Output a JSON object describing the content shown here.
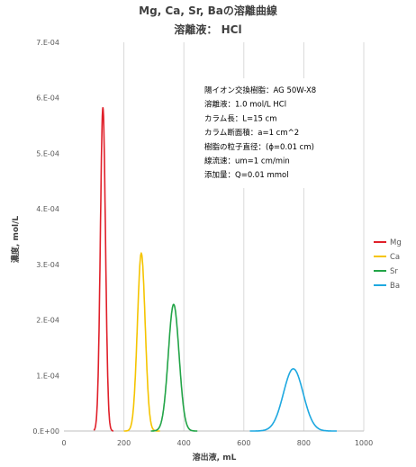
{
  "chart_data": {
    "type": "line",
    "title": "Mg, Ca, Sr, Baの溶離曲線",
    "subtitle": "溶離液： HCl",
    "xlabel": "溶出液, mL",
    "ylabel": "濃度, mol/L",
    "xlim": [
      0,
      1000
    ],
    "ylim": [
      0,
      0.0007
    ],
    "x_ticks": [
      "0",
      "200",
      "400",
      "600",
      "800",
      "1000"
    ],
    "y_ticks": [
      "0.E+00",
      "1.E-04",
      "2.E-04",
      "3.E-04",
      "4.E-04",
      "5.E-04",
      "6.E-04",
      "7.E-04"
    ],
    "grid": "vertical",
    "legend_position": "right",
    "series": [
      {
        "name": "Mg",
        "color": "#e0202a",
        "peak_x": 130,
        "peak_y": 0.000583,
        "sigma": 8.5,
        "range": [
          100,
          165
        ]
      },
      {
        "name": "Ca",
        "color": "#f5c400",
        "peak_x": 258,
        "peak_y": 0.00032,
        "sigma": 13,
        "range": [
          200,
          320
        ]
      },
      {
        "name": "Sr",
        "color": "#22a447",
        "peak_x": 366,
        "peak_y": 0.000228,
        "sigma": 18,
        "range": [
          290,
          445
        ]
      },
      {
        "name": "Ba",
        "color": "#1ea8e0",
        "peak_x": 765,
        "peak_y": 0.000112,
        "sigma": 33,
        "range": [
          620,
          910
        ]
      }
    ],
    "annotation": [
      "陽イオン交換樹脂：AG 50W-X8",
      "溶離液：1.0 mol/L HCl",
      "カラム長：L=15 cm",
      "カラム断面積：a=1 cm^2",
      "樹脂の粒子直径：(ϕ=0.01 cm)",
      "線流速：um=1 cm/min",
      "添加量：Q=0.01 mmol"
    ]
  }
}
